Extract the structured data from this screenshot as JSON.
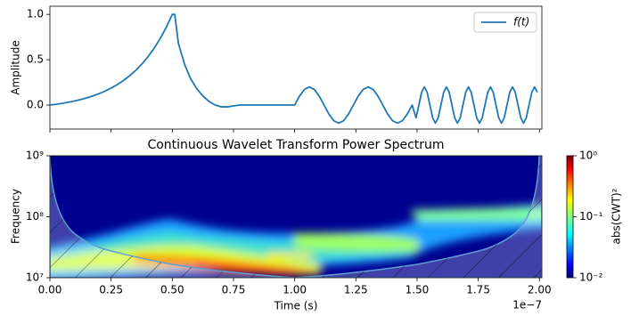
{
  "chart_data": [
    {
      "type": "line",
      "ylabel": "Amplitude",
      "xlim": [
        0,
        2.01
      ],
      "ylim": [
        -0.265,
        1.09
      ],
      "xticks": [
        0,
        0.25,
        0.5,
        0.75,
        1,
        1.25,
        1.5,
        1.75,
        2
      ],
      "yticks": [
        {
          "value": 0,
          "label": "0.0"
        },
        0.5,
        {
          "value": 1,
          "label": "1.0"
        }
      ],
      "legend": "upper right",
      "series": [
        {
          "name": "f(t)",
          "color": "#1f77b4",
          "x": [
            0,
            0.025,
            0.05,
            0.075,
            0.1,
            0.125,
            0.15,
            0.175,
            0.2,
            0.225,
            0.25,
            0.275,
            0.3,
            0.325,
            0.35,
            0.375,
            0.4,
            0.425,
            0.45,
            0.475,
            0.5,
            0.51,
            0.525,
            0.55,
            0.575,
            0.6,
            0.625,
            0.65,
            0.675,
            0.7,
            0.725,
            0.75,
            0.775,
            0.8,
            0.85,
            0.9,
            0.95,
            1,
            1.02,
            1.04,
            1.06,
            1.08,
            1.1,
            1.12,
            1.14,
            1.16,
            1.18,
            1.2,
            1.22,
            1.24,
            1.26,
            1.28,
            1.3,
            1.32,
            1.34,
            1.36,
            1.38,
            1.4,
            1.42,
            1.44,
            1.46,
            1.48,
            1.496,
            1.5075,
            1.51875,
            1.53,
            1.54125,
            1.5525,
            1.56375,
            1.575,
            1.58625,
            1.5975,
            1.60875,
            1.62,
            1.63125,
            1.6425,
            1.65375,
            1.665,
            1.67625,
            1.6875,
            1.69875,
            1.71,
            1.72125,
            1.7325,
            1.74375,
            1.755,
            1.76625,
            1.7775,
            1.78875,
            1.8,
            1.81125,
            1.8225,
            1.83375,
            1.845,
            1.85625,
            1.8675,
            1.87875,
            1.89,
            1.90125,
            1.9125,
            1.92375,
            1.935,
            1.94625,
            1.9575,
            1.96875,
            1.98,
            1.99125
          ],
          "values": [
            0,
            0.009,
            0.019,
            0.031,
            0.044,
            0.06,
            0.079,
            0.1,
            0.125,
            0.153,
            0.187,
            0.225,
            0.27,
            0.321,
            0.381,
            0.45,
            0.53,
            0.623,
            0.731,
            0.855,
            1,
            1,
            0.68,
            0.45,
            0.29,
            0.18,
            0.1,
            0.04,
            0,
            -0.02,
            -0.02,
            -0.01,
            0,
            0,
            0,
            0,
            0,
            0,
            0.1,
            0.173,
            0.2,
            0.173,
            0.1,
            0,
            -0.1,
            -0.173,
            -0.2,
            -0.173,
            -0.1,
            0,
            0.1,
            0.173,
            0.2,
            0.173,
            0.1,
            0,
            -0.1,
            -0.173,
            -0.2,
            -0.173,
            -0.1,
            0,
            -0.141,
            0,
            0.141,
            0.2,
            0.141,
            0,
            -0.141,
            -0.2,
            -0.141,
            0,
            0.141,
            0.2,
            0.141,
            0,
            -0.141,
            -0.2,
            -0.141,
            0,
            0.141,
            0.2,
            0.141,
            0,
            -0.141,
            -0.2,
            -0.141,
            0,
            0.141,
            0.2,
            0.141,
            0,
            -0.141,
            -0.2,
            -0.141,
            0,
            0.141,
            0.2,
            0.141,
            0,
            -0.141,
            -0.2,
            -0.141,
            0,
            0.141,
            0.2,
            0.141
          ]
        }
      ]
    },
    {
      "type": "heatmap",
      "title": "Continuous Wavelet Transform Power Spectrum",
      "xlabel": "Time (s)",
      "x_offset_label": "1e−7",
      "ylabel": "Frequency",
      "xlim": [
        0,
        2.01
      ],
      "ylim": [
        10000000,
        1000000000
      ],
      "yscale": "log",
      "xticks": [
        {
          "value": 0,
          "label": "0.00"
        },
        0.25,
        {
          "value": 0.5,
          "label": "0.50"
        },
        0.75,
        {
          "value": 1,
          "label": "1.00"
        },
        1.25,
        {
          "value": 1.5,
          "label": "1.50"
        },
        1.75,
        {
          "value": 2,
          "label": "2.00"
        }
      ],
      "yticks": [
        {
          "value": 10000000,
          "label": "10⁷"
        },
        {
          "value": 100000000,
          "label": "10⁸"
        },
        {
          "value": 1000000000,
          "label": "10⁹"
        }
      ],
      "colorbar": {
        "label": "abs(CWT)²",
        "colormap": "jet",
        "scale": "log",
        "lim": [
          0.01,
          1
        ],
        "ticks": [
          {
            "value": 0.01,
            "label": "10⁻²"
          },
          {
            "value": 0.1,
            "label": "10⁻¹"
          },
          {
            "value": 1,
            "label": "10⁰"
          }
        ]
      }
    }
  ]
}
